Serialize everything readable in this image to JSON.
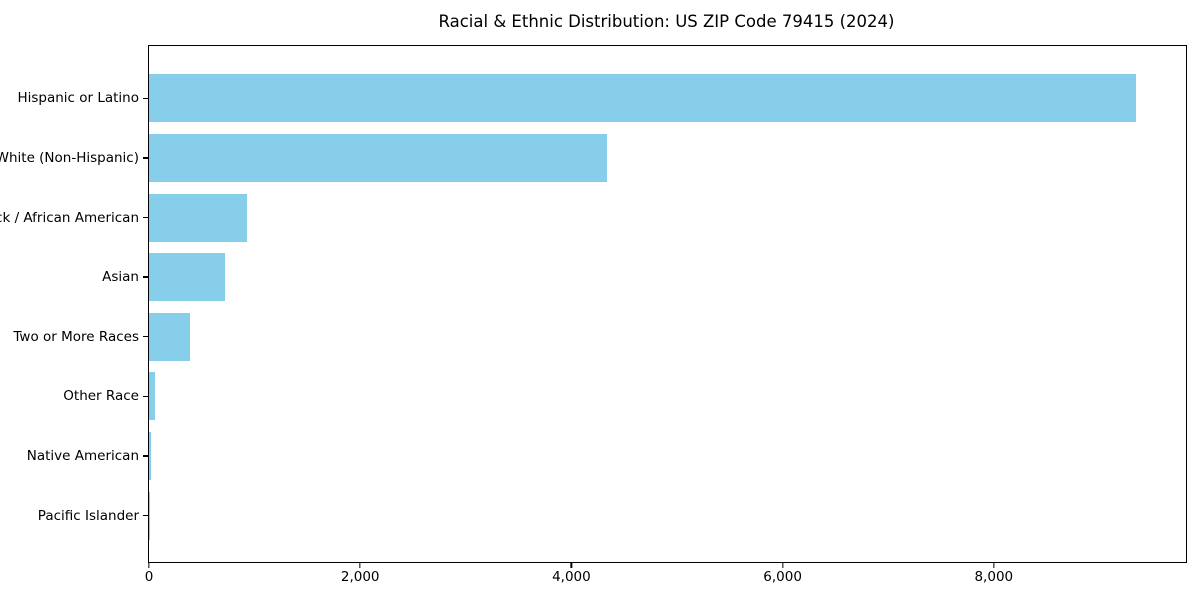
{
  "chart_data": {
    "type": "bar",
    "orientation": "horizontal",
    "title": "Racial & Ethnic Distribution: US ZIP Code 79415 (2024)",
    "categories": [
      "Hispanic or Latino",
      "White (Non-Hispanic)",
      "Black / African American",
      "Asian",
      "Two or More Races",
      "Other Race",
      "Native American",
      "Pacific Islander"
    ],
    "values": [
      9350,
      4340,
      925,
      720,
      385,
      60,
      20,
      5
    ],
    "x_tick_values": [
      0,
      2000,
      4000,
      6000,
      8000
    ],
    "x_tick_labels": [
      "0",
      "2,000",
      "4,000",
      "6,000",
      "8,000"
    ],
    "xlim": [
      0,
      9820
    ],
    "xlabel": "",
    "ylabel": "",
    "grid": false,
    "legend": false,
    "colors": {
      "bar": "#87CEEB",
      "frame": "#000000",
      "text": "#000000",
      "background": "#FFFFFF"
    }
  }
}
